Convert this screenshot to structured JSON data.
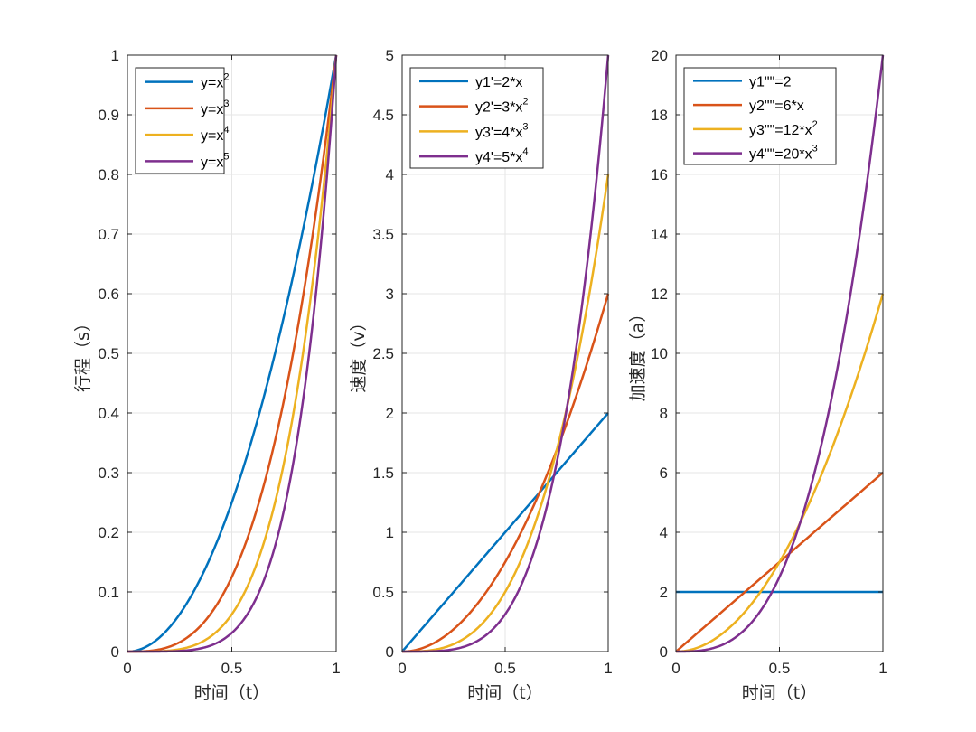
{
  "chart_data": [
    {
      "type": "line",
      "title": "",
      "xlabel": "时间（t）",
      "ylabel": "行程（s）",
      "xlim": [
        0,
        1
      ],
      "ylim": [
        0,
        1
      ],
      "xticks": [
        0,
        0.5,
        1
      ],
      "xtick_labels": [
        "0",
        "0.5",
        "1"
      ],
      "yticks": [
        0,
        0.1,
        0.2,
        0.3,
        0.4,
        0.5,
        0.6,
        0.7,
        0.8,
        0.9,
        1
      ],
      "ytick_labels": [
        "0",
        "0.1",
        "0.2",
        "0.3",
        "0.4",
        "0.5",
        "0.6",
        "0.7",
        "0.8",
        "0.9",
        "1"
      ],
      "grid": true,
      "legend_position": "top-left",
      "series": [
        {
          "name": "y=x^2",
          "label_base": "y=x",
          "label_sup": "2",
          "coef": 1,
          "power": 2,
          "color": "#0072BD"
        },
        {
          "name": "y=x^3",
          "label_base": "y=x",
          "label_sup": "3",
          "coef": 1,
          "power": 3,
          "color": "#D95319"
        },
        {
          "name": "y=x^4",
          "label_base": "y=x",
          "label_sup": "4",
          "coef": 1,
          "power": 4,
          "color": "#EDB120"
        },
        {
          "name": "y=x^5",
          "label_base": "y=x",
          "label_sup": "5",
          "coef": 1,
          "power": 5,
          "color": "#7E2F8E"
        }
      ]
    },
    {
      "type": "line",
      "title": "",
      "xlabel": "时间（t）",
      "ylabel": "速度（v）",
      "xlim": [
        0,
        1
      ],
      "ylim": [
        0,
        5
      ],
      "xticks": [
        0,
        0.5,
        1
      ],
      "xtick_labels": [
        "0",
        "0.5",
        "1"
      ],
      "yticks": [
        0,
        0.5,
        1,
        1.5,
        2,
        2.5,
        3,
        3.5,
        4,
        4.5,
        5
      ],
      "ytick_labels": [
        "0",
        "0.5",
        "1",
        "1.5",
        "2",
        "2.5",
        "3",
        "3.5",
        "4",
        "4.5",
        "5"
      ],
      "grid": true,
      "legend_position": "top-left",
      "series": [
        {
          "name": "y1'=2*x",
          "label_base": "y1'=2*x",
          "label_sup": "",
          "coef": 2,
          "power": 1,
          "color": "#0072BD"
        },
        {
          "name": "y2'=3*x^2",
          "label_base": "y2'=3*x",
          "label_sup": "2",
          "coef": 3,
          "power": 2,
          "color": "#D95319"
        },
        {
          "name": "y3'=4*x^3",
          "label_base": "y3'=4*x",
          "label_sup": "3",
          "coef": 4,
          "power": 3,
          "color": "#EDB120"
        },
        {
          "name": "y4'=5*x^4",
          "label_base": "y4'=5*x",
          "label_sup": "4",
          "coef": 5,
          "power": 4,
          "color": "#7E2F8E"
        }
      ]
    },
    {
      "type": "line",
      "title": "",
      "xlabel": "时间（t）",
      "ylabel": "加速度（a）",
      "xlim": [
        0,
        1
      ],
      "ylim": [
        0,
        20
      ],
      "xticks": [
        0,
        0.5,
        1
      ],
      "xtick_labels": [
        "0",
        "0.5",
        "1"
      ],
      "yticks": [
        0,
        2,
        4,
        6,
        8,
        10,
        12,
        14,
        16,
        18,
        20
      ],
      "ytick_labels": [
        "0",
        "2",
        "4",
        "6",
        "8",
        "10",
        "12",
        "14",
        "16",
        "18",
        "20"
      ],
      "grid": true,
      "legend_position": "top-left",
      "series": [
        {
          "name": "y1\"\"=2",
          "label_base": "y1\"\"=2",
          "label_sup": "",
          "coef": 2,
          "power": 0,
          "color": "#0072BD"
        },
        {
          "name": "y2\"\"=6*x",
          "label_base": "y2\"\"=6*x",
          "label_sup": "",
          "coef": 6,
          "power": 1,
          "color": "#D95319"
        },
        {
          "name": "y3\"\"=12*x^2",
          "label_base": "y3\"\"=12*x",
          "label_sup": "2",
          "coef": 12,
          "power": 2,
          "color": "#EDB120"
        },
        {
          "name": "y4\"\"=20*x^3",
          "label_base": "y4\"\"=20*x",
          "label_sup": "3",
          "coef": 20,
          "power": 3,
          "color": "#7E2F8E"
        }
      ]
    }
  ]
}
